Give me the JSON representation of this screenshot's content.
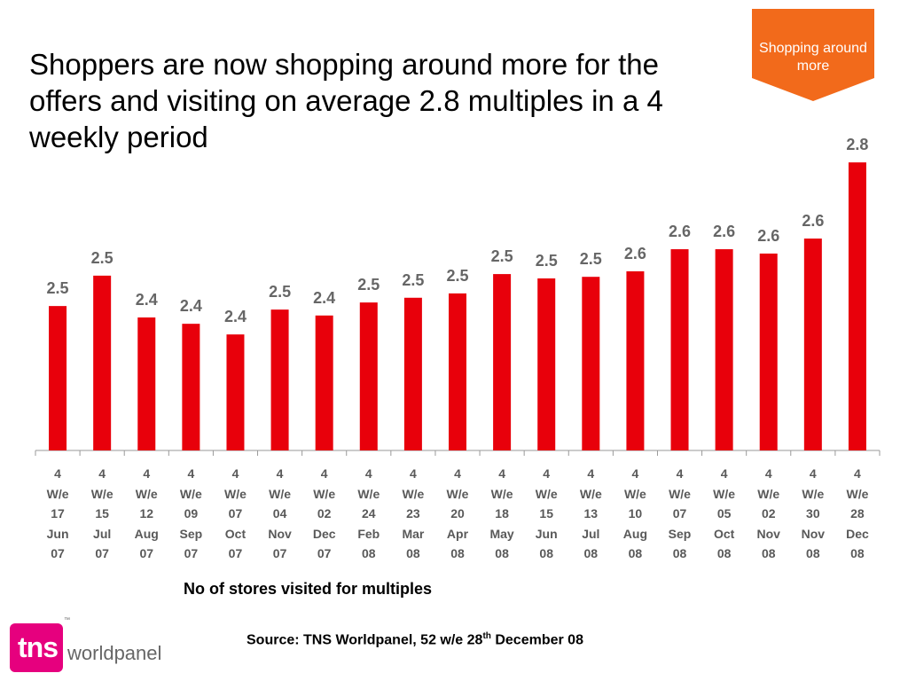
{
  "chart_data": {
    "type": "bar",
    "title": "Shoppers are now shopping around more for the offers and visiting on average 2.8 multiples in a 4 weekly period",
    "x_label": "No of stores visited for multiples",
    "categories": [
      "4 W/e 17 Jun 07",
      "4 W/e 15 Jul 07",
      "4 W/e 12 Aug 07",
      "4 W/e 09 Sep 07",
      "4 W/e 07 Oct 07",
      "4 W/e 04 Nov 07",
      "4 W/e 02 Dec 07",
      "4 W/e 24 Feb 08",
      "4 W/e 23 Mar 08",
      "4 W/e 20 Apr 08",
      "4 W/e 18 May 08",
      "4 W/e 15 Jun 08",
      "4 W/e 13 Jul 08",
      "4 W/e 10 Aug 08",
      "4 W/e 07 Sep 08",
      "4 W/e 05 Oct 08",
      "4 W/e 02 Nov 08",
      "4 W/e 30 Nov 08",
      "4 W/e 28 Dec 08"
    ],
    "values": [
      2.466,
      2.543,
      2.437,
      2.421,
      2.394,
      2.457,
      2.442,
      2.475,
      2.487,
      2.498,
      2.547,
      2.536,
      2.54,
      2.554,
      2.61,
      2.61,
      2.599,
      2.637,
      2.83
    ],
    "value_labels": [
      "2.5",
      "2.5",
      "2.4",
      "2.4",
      "2.4",
      "2.5",
      "2.4",
      "2.5",
      "2.5",
      "2.5",
      "2.5",
      "2.5",
      "2.5",
      "2.6",
      "2.6",
      "2.6",
      "2.6",
      "2.6",
      "2.8"
    ],
    "color": "#e8000b",
    "ylim": [
      2.1,
      2.9
    ]
  },
  "banner": "Shopping around more",
  "source": {
    "text": "Source: TNS Worldpanel, 52 w/e 28",
    "superscript": "th",
    "rest": " December 08"
  },
  "logo": {
    "brand": "tns",
    "product": "worldpanel",
    "mark": "™"
  }
}
